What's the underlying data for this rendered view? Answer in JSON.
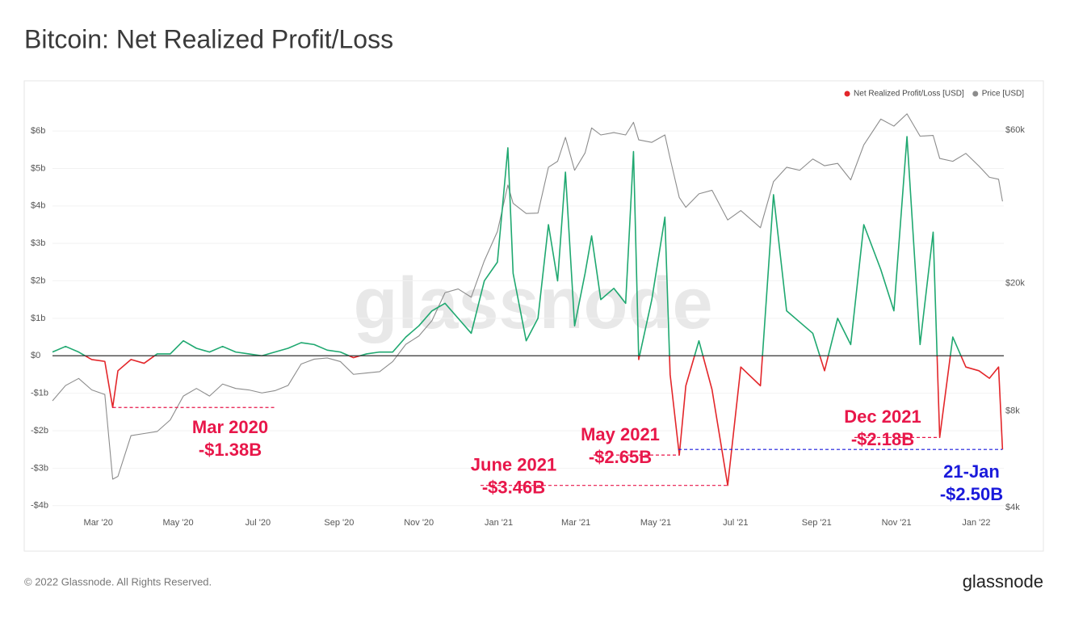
{
  "chart_data": {
    "type": "line",
    "title": "Bitcoin: Net Realized Profit/Loss",
    "watermark": "glassnode",
    "footer": "© 2022 Glassnode. All Rights Reserved.",
    "brand": "glassnode",
    "legend": "top-right",
    "grid": true,
    "x": [
      "2020-01-26",
      "2020-02-05",
      "2020-02-15",
      "2020-02-25",
      "2020-03-06",
      "2020-03-12",
      "2020-03-16",
      "2020-03-26",
      "2020-04-05",
      "2020-04-15",
      "2020-04-25",
      "2020-05-05",
      "2020-05-15",
      "2020-05-25",
      "2020-06-04",
      "2020-06-14",
      "2020-06-24",
      "2020-07-04",
      "2020-07-14",
      "2020-07-24",
      "2020-08-03",
      "2020-08-13",
      "2020-08-23",
      "2020-09-02",
      "2020-09-12",
      "2020-09-22",
      "2020-10-02",
      "2020-10-12",
      "2020-10-22",
      "2020-11-01",
      "2020-11-11",
      "2020-11-21",
      "2020-12-01",
      "2020-12-11",
      "2020-12-21",
      "2020-12-31",
      "2021-01-08",
      "2021-01-12",
      "2021-01-22",
      "2021-01-31",
      "2021-02-08",
      "2021-02-15",
      "2021-02-21",
      "2021-02-28",
      "2021-03-08",
      "2021-03-13",
      "2021-03-20",
      "2021-03-30",
      "2021-04-08",
      "2021-04-14",
      "2021-04-18",
      "2021-04-28",
      "2021-05-08",
      "2021-05-12",
      "2021-05-19",
      "2021-05-24",
      "2021-06-03",
      "2021-06-13",
      "2021-06-25",
      "2021-07-05",
      "2021-07-20",
      "2021-07-30",
      "2021-08-09",
      "2021-08-19",
      "2021-08-29",
      "2021-09-07",
      "2021-09-17",
      "2021-09-27",
      "2021-10-07",
      "2021-10-20",
      "2021-10-30",
      "2021-11-09",
      "2021-11-19",
      "2021-11-29",
      "2021-12-04",
      "2021-12-14",
      "2021-12-24",
      "2022-01-03",
      "2022-01-11",
      "2022-01-18",
      "2022-01-21"
    ],
    "series": [
      {
        "name": "Net Realized Profit/Loss [USD]",
        "color": "#1fa870",
        "negative_color": "#e3262a",
        "legend_color": "#e3262a",
        "values": [
          0.1,
          0.25,
          0.1,
          -0.1,
          -0.15,
          -1.38,
          -0.4,
          -0.1,
          -0.2,
          0.05,
          0.05,
          0.4,
          0.2,
          0.1,
          0.25,
          0.1,
          0.05,
          0.0,
          0.1,
          0.2,
          0.35,
          0.3,
          0.15,
          0.1,
          -0.05,
          0.05,
          0.1,
          0.1,
          0.5,
          0.8,
          1.2,
          1.4,
          1.0,
          0.6,
          2.0,
          2.5,
          5.55,
          2.2,
          0.4,
          1.0,
          3.5,
          2.0,
          4.9,
          0.8,
          2.2,
          3.2,
          1.5,
          1.8,
          1.4,
          5.45,
          -0.1,
          1.5,
          3.7,
          -0.5,
          -2.65,
          -0.8,
          0.4,
          -0.9,
          -3.46,
          -0.3,
          -0.8,
          4.3,
          1.2,
          0.9,
          0.6,
          -0.4,
          1.0,
          0.3,
          3.5,
          2.3,
          1.2,
          5.85,
          0.3,
          3.3,
          -2.18,
          0.5,
          -0.3,
          -0.4,
          -0.6,
          -0.3,
          -2.5
        ]
      },
      {
        "name": "Price [USD]",
        "color": "#8c8c8c",
        "axis": "y2",
        "values": [
          8600,
          9600,
          10100,
          9300,
          9000,
          4900,
          5000,
          6700,
          6800,
          6900,
          7500,
          8900,
          9400,
          8900,
          9700,
          9400,
          9300,
          9100,
          9250,
          9600,
          11200,
          11600,
          11700,
          11400,
          10400,
          10500,
          10600,
          11400,
          12900,
          13700,
          15300,
          18700,
          19200,
          18100,
          23500,
          29000,
          40500,
          35500,
          33000,
          33100,
          46000,
          48000,
          57000,
          45000,
          51000,
          61000,
          58000,
          59000,
          58000,
          63500,
          56000,
          55000,
          58000,
          49000,
          37000,
          34500,
          38000,
          39000,
          31500,
          33700,
          29800,
          41500,
          46000,
          45000,
          48800,
          46500,
          47300,
          42000,
          54000,
          65000,
          61800,
          67500,
          57500,
          57800,
          49000,
          48000,
          50800,
          46400,
          42800,
          42200,
          36000
        ]
      }
    ],
    "xlim": [
      "2020-01-26",
      "2022-01-22"
    ],
    "xticks": [
      {
        "value": "2020-03",
        "label": "Mar '20"
      },
      {
        "value": "2020-05",
        "label": "May '20"
      },
      {
        "value": "2020-07",
        "label": "Jul '20"
      },
      {
        "value": "2020-09",
        "label": "Sep '20"
      },
      {
        "value": "2020-11",
        "label": "Nov '20"
      },
      {
        "value": "2021-01",
        "label": "Jan '21"
      },
      {
        "value": "2021-03",
        "label": "Mar '21"
      },
      {
        "value": "2021-05",
        "label": "May '21"
      },
      {
        "value": "2021-07",
        "label": "Jul '21"
      },
      {
        "value": "2021-09",
        "label": "Sep '21"
      },
      {
        "value": "2021-11",
        "label": "Nov '21"
      },
      {
        "value": "2022-01",
        "label": "Jan '22"
      }
    ],
    "ylim": [
      -4.2,
      6.8
    ],
    "yticks": [
      {
        "value": -4,
        "label": "-$4b"
      },
      {
        "value": -3,
        "label": "-$3b"
      },
      {
        "value": -2,
        "label": "-$2b"
      },
      {
        "value": -1,
        "label": "-$1b"
      },
      {
        "value": 0,
        "label": "$0"
      },
      {
        "value": 1,
        "label": "$1b"
      },
      {
        "value": 2,
        "label": "$2b"
      },
      {
        "value": 3,
        "label": "$3b"
      },
      {
        "value": 4,
        "label": "$4b"
      },
      {
        "value": 5,
        "label": "$5b"
      },
      {
        "value": 6,
        "label": "$6b"
      }
    ],
    "y2scale": "log",
    "y2lim": [
      3840,
      74000
    ],
    "y2ticks": [
      {
        "value": 4000,
        "label": "$4k"
      },
      {
        "value": 8000,
        "label": "$8k"
      },
      {
        "value": 20000,
        "label": "$20k"
      },
      {
        "value": 60000,
        "label": "$60k"
      }
    ],
    "annotations": [
      {
        "text": "Mar 2020",
        "label": "-$1.38B",
        "value": -1.38,
        "x": "2020-03-12",
        "color": "#e8174a"
      },
      {
        "text": "June 2021",
        "label": "-$3.46B",
        "value": -3.46,
        "x": "2021-06-25",
        "color": "#e8174a"
      },
      {
        "text": "May 2021",
        "label": "-$2.65B",
        "value": -2.65,
        "x": "2021-05-19",
        "color": "#e8174a"
      },
      {
        "text": "Dec 2021",
        "label": "-$2.18B",
        "value": -2.18,
        "x": "2021-12-04",
        "color": "#e8174a"
      },
      {
        "text": "21-Jan",
        "label": "-$2.50B",
        "value": -2.5,
        "x": "2022-01-21",
        "color": "#1a1adb"
      }
    ]
  }
}
